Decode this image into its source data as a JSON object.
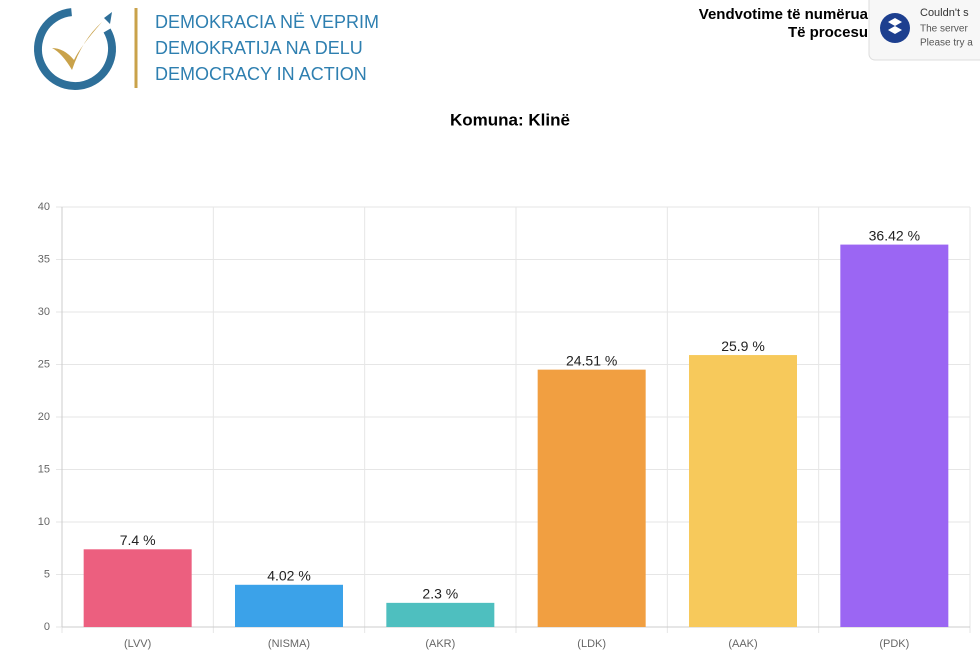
{
  "header": {
    "lines": [
      "DEMOKRACIA NË VEPRIM",
      "DEMOKRATIJA NA DELU",
      "DEMOCRACY IN ACTION"
    ],
    "status": [
      "Vendvotime të numërua",
      "Të procesu"
    ]
  },
  "notification": {
    "lines": [
      "Couldn't s",
      "The server",
      "Please try a"
    ]
  },
  "chart_data": {
    "type": "bar",
    "title": "Komuna: Klinë",
    "categories": [
      "(LVV)",
      "(NISMA)",
      "(AKR)",
      "(LDK)",
      "(AAK)",
      "(PDK)"
    ],
    "values": [
      7.4,
      4.02,
      2.3,
      24.51,
      25.9,
      36.42
    ],
    "value_labels": [
      "7.4 %",
      "4.02 %",
      "2.3 %",
      "24.51 %",
      "25.9 %",
      "36.42 %"
    ],
    "colors": [
      "#ec5f7f",
      "#3ba2e9",
      "#4ebfbf",
      "#f19f41",
      "#f7c95b",
      "#9b66f3"
    ],
    "ylim": [
      0,
      40
    ],
    "yticks": [
      0,
      5,
      10,
      15,
      20,
      25,
      30,
      35,
      40
    ],
    "grid": true
  }
}
